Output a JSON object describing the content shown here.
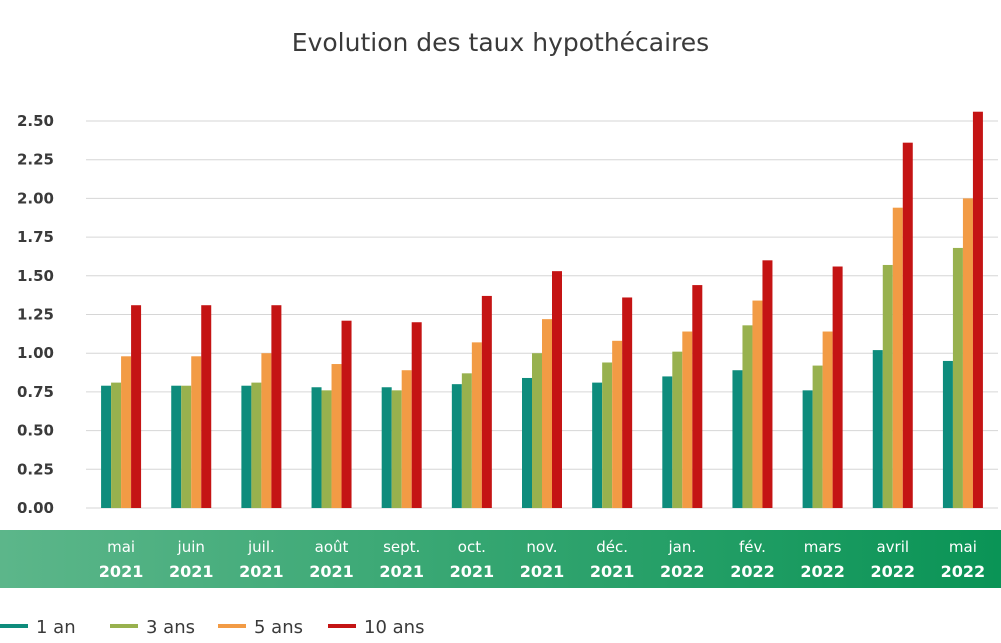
{
  "chart_data": {
    "type": "bar",
    "title": "Evolution des taux hypothécaires",
    "xlabel": "",
    "ylabel": "",
    "ylim": [
      0,
      2.5
    ],
    "yticks": [
      "0.00",
      "0.25",
      "0.50",
      "0.75",
      "1.00",
      "1.25",
      "1.50",
      "1.75",
      "2.00",
      "2.25",
      "2.50"
    ],
    "grid": true,
    "legend_position": "bottom-left",
    "categories": [
      {
        "month": "mai",
        "year": "2021"
      },
      {
        "month": "juin",
        "year": "2021"
      },
      {
        "month": "juil.",
        "year": "2021"
      },
      {
        "month": "août",
        "year": "2021"
      },
      {
        "month": "sept.",
        "year": "2021"
      },
      {
        "month": "oct.",
        "year": "2021"
      },
      {
        "month": "nov.",
        "year": "2021"
      },
      {
        "month": "déc.",
        "year": "2021"
      },
      {
        "month": "jan.",
        "year": "2022"
      },
      {
        "month": "fév.",
        "year": "2022"
      },
      {
        "month": "mars",
        "year": "2022"
      },
      {
        "month": "avril",
        "year": "2022"
      },
      {
        "month": "mai",
        "year": "2022"
      }
    ],
    "series": [
      {
        "name": "1 an",
        "color": "#0e8c7c",
        "values": [
          0.79,
          0.79,
          0.79,
          0.78,
          0.78,
          0.8,
          0.84,
          0.81,
          0.85,
          0.89,
          0.76,
          1.02,
          0.95
        ]
      },
      {
        "name": "3 ans",
        "color": "#98b14e",
        "values": [
          0.81,
          0.79,
          0.81,
          0.76,
          0.76,
          0.87,
          1.0,
          0.94,
          1.01,
          1.18,
          0.92,
          1.57,
          1.68
        ]
      },
      {
        "name": "5 ans",
        "color": "#f29b45",
        "values": [
          0.98,
          0.98,
          1.0,
          0.93,
          0.89,
          1.07,
          1.22,
          1.08,
          1.14,
          1.34,
          1.14,
          1.94,
          2.0
        ]
      },
      {
        "name": "10 ans",
        "color": "#c41414",
        "values": [
          1.31,
          1.31,
          1.31,
          1.21,
          1.2,
          1.37,
          1.53,
          1.36,
          1.44,
          1.6,
          1.56,
          2.36,
          2.56
        ]
      }
    ],
    "axis_band": {
      "gradient_start": "#5cb68a",
      "gradient_end": "#0a9456"
    }
  }
}
